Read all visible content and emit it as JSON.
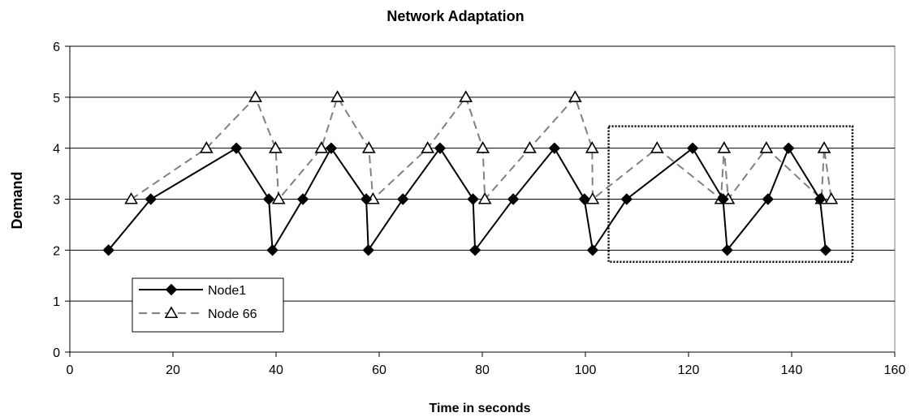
{
  "chart_data": {
    "type": "line",
    "title": "Network Adaptation",
    "xlabel": "Time in seconds",
    "ylabel": "Demand",
    "xlim": [
      0,
      160
    ],
    "ylim": [
      0,
      6
    ],
    "xticks": [
      0,
      20,
      40,
      60,
      80,
      100,
      120,
      140,
      160
    ],
    "yticks": [
      0,
      1,
      2,
      3,
      4,
      5,
      6
    ],
    "grid": "horizontal",
    "legend_position": "lower-left",
    "series": [
      {
        "name": "Node1",
        "color": "#000000",
        "line_style": "solid",
        "marker": "diamond",
        "points": [
          [
            7.5,
            2
          ],
          [
            15.7,
            3
          ],
          [
            32.3,
            4
          ],
          [
            38.6,
            3
          ],
          [
            39.3,
            2
          ],
          [
            45.2,
            3
          ],
          [
            50.7,
            4
          ],
          [
            57.5,
            3
          ],
          [
            57.9,
            2
          ],
          [
            64.6,
            3
          ],
          [
            71.8,
            4
          ],
          [
            78.2,
            3
          ],
          [
            78.6,
            2
          ],
          [
            86.0,
            3
          ],
          [
            94.0,
            4
          ],
          [
            99.8,
            3
          ],
          [
            101.4,
            2
          ],
          [
            108.0,
            3
          ],
          [
            120.8,
            4
          ],
          [
            126.7,
            3
          ],
          [
            127.5,
            2
          ],
          [
            135.4,
            3
          ],
          [
            139.4,
            4
          ],
          [
            145.5,
            3
          ],
          [
            146.6,
            2
          ]
        ]
      },
      {
        "name": "Node 66",
        "color": "#808080",
        "line_style": "dashed",
        "marker": "triangle",
        "points": [
          [
            11.9,
            3
          ],
          [
            26.5,
            4
          ],
          [
            36.0,
            5
          ],
          [
            39.9,
            4
          ],
          [
            40.5,
            3
          ],
          [
            48.8,
            4
          ],
          [
            51.9,
            5
          ],
          [
            58.0,
            4
          ],
          [
            58.8,
            3
          ],
          [
            69.4,
            4
          ],
          [
            76.8,
            5
          ],
          [
            80.1,
            4
          ],
          [
            80.5,
            3
          ],
          [
            89.2,
            4
          ],
          [
            98.0,
            5
          ],
          [
            101.3,
            4
          ],
          [
            101.4,
            3
          ],
          [
            113.9,
            4
          ],
          [
            126.3,
            3
          ],
          [
            126.9,
            4
          ],
          [
            127.7,
            3
          ],
          [
            135.1,
            4
          ],
          [
            145.8,
            3
          ],
          [
            146.3,
            4
          ],
          [
            147.7,
            3
          ]
        ]
      }
    ],
    "annotations": [
      {
        "type": "dotted-box",
        "x_range": [
          104.5,
          151.8
        ],
        "y_range": [
          1.77,
          4.43
        ]
      }
    ]
  }
}
